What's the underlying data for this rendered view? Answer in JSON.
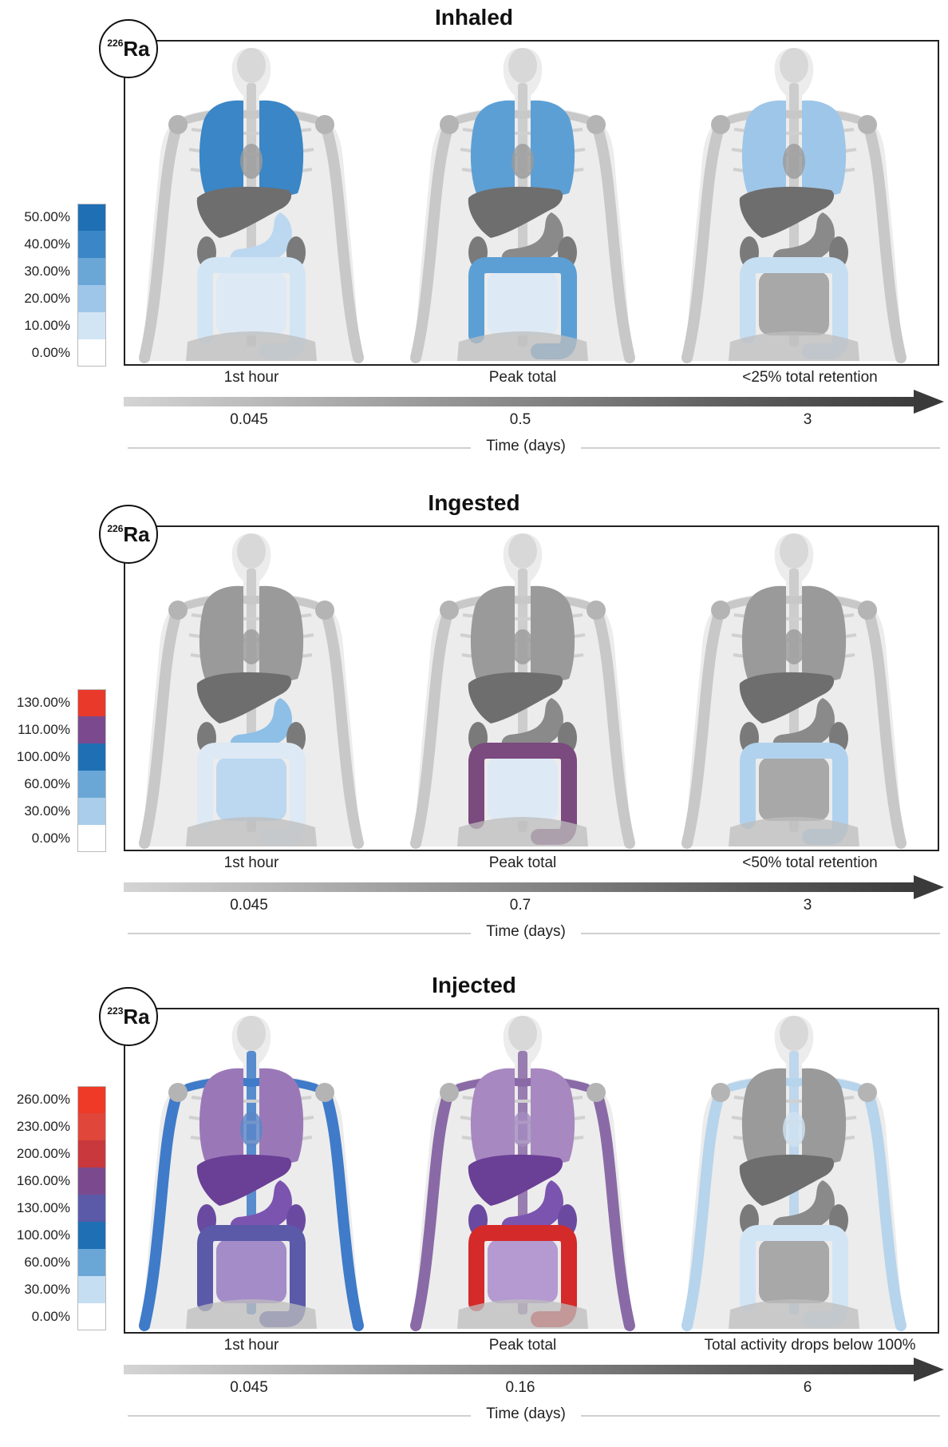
{
  "panels": [
    {
      "title": "Inhaled",
      "isotope": {
        "mass": "226",
        "symbol": "Ra"
      },
      "legend": [
        {
          "label": "50.00%",
          "color": "#1f6fb4"
        },
        {
          "label": "40.00%",
          "color": "#3a86c6"
        },
        {
          "label": "30.00%",
          "color": "#6aa7d7"
        },
        {
          "label": "20.00%",
          "color": "#9ec6e8"
        },
        {
          "label": "10.00%",
          "color": "#d2e5f5"
        },
        {
          "label": "0.00%",
          "color": "#ffffff"
        }
      ],
      "stages": [
        {
          "label": "1st hour",
          "time": "0.045",
          "colors": {
            "lungs": "#3a86c6",
            "liver": "#6e6e6e",
            "stomach": "#bcd8f0",
            "kidneys": "#7a7a7a",
            "small": "#dde9f4",
            "large": "#d2e5f5",
            "bones": "#c8c8c8",
            "heart": "#9a9a9a"
          }
        },
        {
          "label": "Peak total",
          "time": "0.5",
          "colors": {
            "lungs": "#5c9fd5",
            "liver": "#6e6e6e",
            "stomach": "#8a8a8a",
            "kidneys": "#7a7a7a",
            "small": "#dde9f4",
            "large": "#5c9fd5",
            "bones": "#c8c8c8",
            "heart": "#9a9a9a"
          }
        },
        {
          "label": "<25% total retention",
          "time": "3",
          "colors": {
            "lungs": "#9ec6e8",
            "liver": "#6e6e6e",
            "stomach": "#8a8a8a",
            "kidneys": "#7a7a7a",
            "small": "#a8a8a8",
            "large": "#c6def2",
            "bones": "#c8c8c8",
            "heart": "#9a9a9a"
          }
        }
      ],
      "axis_label": "Time (days)"
    },
    {
      "title": "Ingested",
      "isotope": {
        "mass": "226",
        "symbol": "Ra"
      },
      "legend": [
        {
          "label": "130.00%",
          "color": "#e8392b"
        },
        {
          "label": "110.00%",
          "color": "#7b4a8e"
        },
        {
          "label": "100.00%",
          "color": "#1f6fb4"
        },
        {
          "label": "60.00%",
          "color": "#6aa7d7"
        },
        {
          "label": "30.00%",
          "color": "#a9cdea"
        },
        {
          "label": "0.00%",
          "color": "#ffffff"
        }
      ],
      "stages": [
        {
          "label": "1st hour",
          "time": "0.045",
          "colors": {
            "lungs": "#9a9a9a",
            "liver": "#6e6e6e",
            "stomach": "#8ebfe6",
            "kidneys": "#7a7a7a",
            "small": "#bcd8f0",
            "large": "#dde9f4",
            "bones": "#c8c8c8",
            "heart": "#9a9a9a"
          }
        },
        {
          "label": "Peak total",
          "time": "0.7",
          "colors": {
            "lungs": "#9a9a9a",
            "liver": "#6e6e6e",
            "stomach": "#8a8a8a",
            "kidneys": "#7a7a7a",
            "small": "#dde9f4",
            "large": "#7b4a7e",
            "bones": "#c8c8c8",
            "heart": "#9a9a9a"
          }
        },
        {
          "label": "<50% total retention",
          "time": "3",
          "colors": {
            "lungs": "#9a9a9a",
            "liver": "#6e6e6e",
            "stomach": "#8a8a8a",
            "kidneys": "#7a7a7a",
            "small": "#a8a8a8",
            "large": "#b0d2ee",
            "bones": "#c8c8c8",
            "heart": "#9a9a9a"
          }
        }
      ],
      "axis_label": "Time (days)"
    },
    {
      "title": "Injected",
      "isotope": {
        "mass": "223",
        "symbol": "Ra"
      },
      "legend": [
        {
          "label": "260.00%",
          "color": "#ee3a26"
        },
        {
          "label": "230.00%",
          "color": "#e0463a"
        },
        {
          "label": "200.00%",
          "color": "#c8383c"
        },
        {
          "label": "160.00%",
          "color": "#7b4a8e"
        },
        {
          "label": "130.00%",
          "color": "#5a5aa8"
        },
        {
          "label": "100.00%",
          "color": "#1f6fb4"
        },
        {
          "label": "60.00%",
          "color": "#6aa7d7"
        },
        {
          "label": "30.00%",
          "color": "#c6def2"
        },
        {
          "label": "0.00%",
          "color": "#ffffff"
        }
      ],
      "stages": [
        {
          "label": "1st hour",
          "time": "0.045",
          "colors": {
            "lungs": "#9a78b8",
            "liver": "#6a3f96",
            "stomach": "#7b54b0",
            "kidneys": "#6a4aa0",
            "small": "#a48cc8",
            "large": "#5a5aa8",
            "bones": "#3f7bc8",
            "heart": "#5a86c8"
          }
        },
        {
          "label": "Peak total",
          "time": "0.16",
          "colors": {
            "lungs": "#a888c0",
            "liver": "#6a3f96",
            "stomach": "#7b54b0",
            "kidneys": "#6a4aa0",
            "small": "#b49ad0",
            "large": "#d42a2a",
            "bones": "#8a6aa6",
            "heart": "#a48cc0"
          }
        },
        {
          "label": "Total activity drops below 100%",
          "time": "6",
          "colors": {
            "lungs": "#9a9a9a",
            "liver": "#6e6e6e",
            "stomach": "#8a8a8a",
            "kidneys": "#7a7a7a",
            "small": "#a8a8a8",
            "large": "#d2e5f5",
            "bones": "#b6d4ec",
            "heart": "#cfe2f3"
          }
        }
      ],
      "axis_label": "Time (days)"
    }
  ]
}
